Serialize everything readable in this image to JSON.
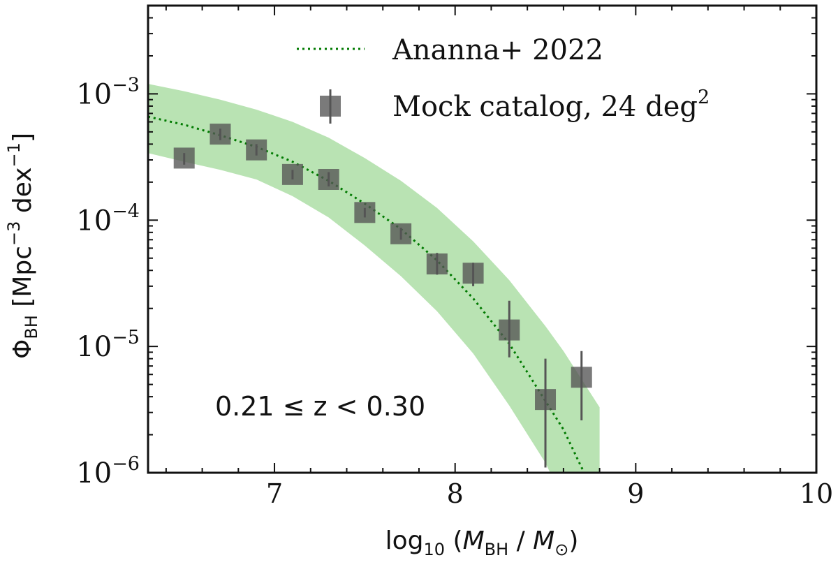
{
  "chart_data": {
    "type": "scatter",
    "xlabel": "log₁₀ (M_BH / M_⊙)",
    "ylabel": "Φ_BH [Mpc⁻³ dex⁻¹]",
    "xlim": [
      6.3,
      10.0
    ],
    "ylim": [
      1e-06,
      0.005
    ],
    "yscale": "log",
    "xticks": [
      {
        "value": 7,
        "label": "7"
      },
      {
        "value": 8,
        "label": "8"
      },
      {
        "value": 9,
        "label": "9"
      },
      {
        "value": 10,
        "label": "10"
      }
    ],
    "yticks": [
      {
        "value": 1e-06,
        "base": "10",
        "exp": "−6"
      },
      {
        "value": 1e-05,
        "base": "10",
        "exp": "−5"
      },
      {
        "value": 0.0001,
        "base": "10",
        "exp": "−4"
      },
      {
        "value": 0.001,
        "base": "10",
        "exp": "−3"
      }
    ],
    "annotation": "0.21 ≤ z < 0.30",
    "legend": {
      "placement": "top-right",
      "entries": [
        {
          "label": "Ananna+ 2022",
          "style": "dotted-line"
        },
        {
          "label": "Mock catalog, 24 deg",
          "label_sup": "2",
          "style": "square-with-errorbar"
        }
      ]
    },
    "series": [
      {
        "name": "Ananna+ 2022",
        "kind": "line",
        "x": [
          6.3,
          6.5,
          6.7,
          6.9,
          7.1,
          7.3,
          7.5,
          7.7,
          7.9,
          8.1,
          8.3,
          8.5,
          8.6,
          8.7,
          8.8
        ],
        "y": [
          0.00066,
          0.00057,
          0.00047,
          0.00038,
          0.00029,
          0.000205,
          0.000135,
          8.5e-05,
          4.8e-05,
          2.4e-05,
          1.05e-05,
          3.7e-06,
          2.2e-06,
          1.1e-06,
          6e-07
        ],
        "band_lower": [
          0.00034,
          0.00029,
          0.00025,
          0.00021,
          0.000155,
          0.000105,
          6.3e-05,
          3.6e-05,
          1.9e-05,
          8.8e-06,
          3.4e-06,
          1.2e-06,
          6e-07,
          3e-07,
          1.6e-07
        ],
        "band_upper": [
          0.0012,
          0.00105,
          0.0009,
          0.00075,
          0.0006,
          0.00045,
          0.00031,
          0.000205,
          0.000125,
          6.8e-05,
          3.35e-05,
          1.45e-05,
          9.2e-06,
          5.5e-06,
          3.3e-06
        ],
        "color": "#007a00",
        "band_color": "#b9e3b3"
      },
      {
        "name": "Mock catalog, 24 deg²",
        "kind": "points",
        "x": [
          6.5,
          6.7,
          6.9,
          7.1,
          7.3,
          7.5,
          7.7,
          7.9,
          8.1,
          8.3,
          8.5,
          8.7
        ],
        "y": [
          0.00031,
          0.00048,
          0.00036,
          0.00023,
          0.00021,
          0.000115,
          7.8e-05,
          4.5e-05,
          3.8e-05,
          1.35e-05,
          3.8e-06,
          5.7e-06
        ],
        "yerr_low": [
          0.000275,
          0.00043,
          0.000325,
          0.00021,
          0.000185,
          0.000105,
          7e-05,
          3.7e-05,
          3e-05,
          8.2e-06,
          1.1e-06,
          2.6e-06
        ],
        "yerr_high": [
          0.00034,
          0.00053,
          0.0004,
          0.00025,
          0.00024,
          0.000125,
          8.7e-05,
          5.5e-05,
          4.6e-05,
          2.3e-05,
          8e-06,
          9.2e-06
        ],
        "color": "#555555"
      }
    ]
  }
}
